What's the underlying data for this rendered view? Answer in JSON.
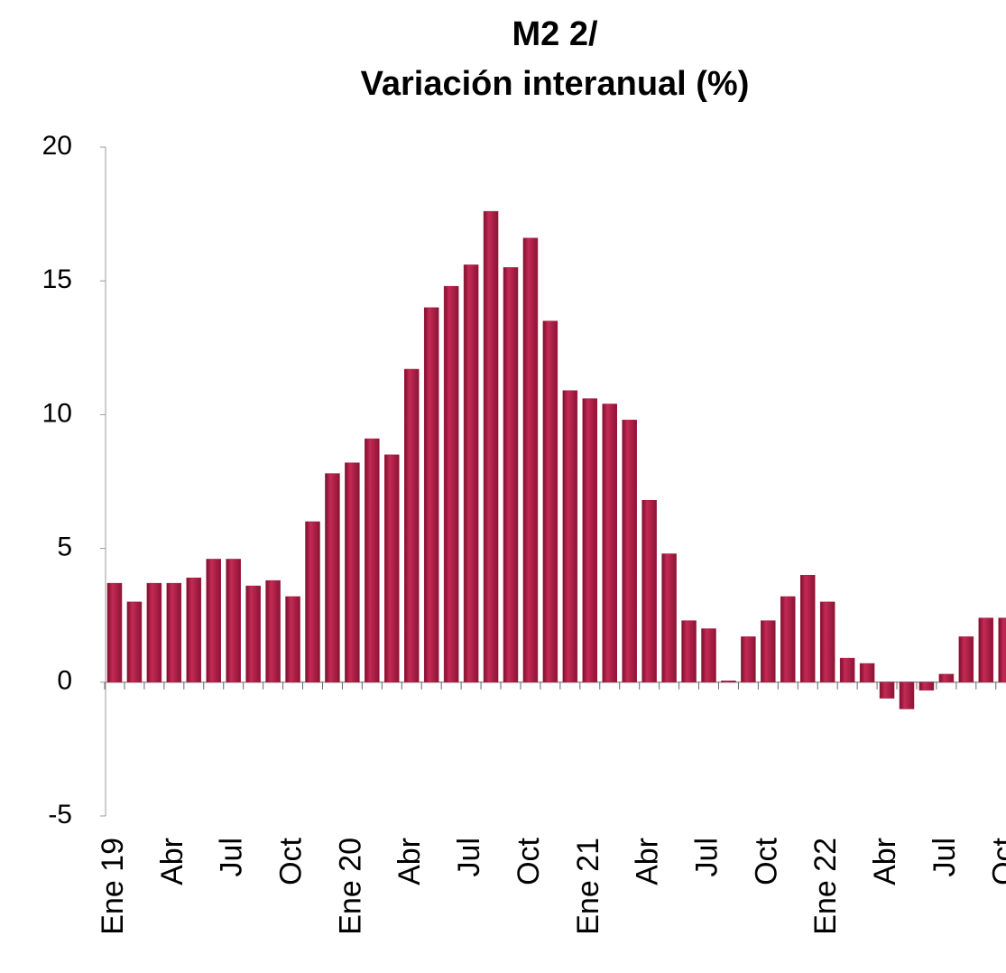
{
  "chart_data": {
    "type": "bar",
    "title": "M2 2/",
    "subtitle": "Variación interanual  (%)",
    "categories": [
      "Ene 19",
      null,
      null,
      "Abr",
      null,
      null,
      "Jul",
      null,
      null,
      "Oct",
      null,
      null,
      "Ene 20",
      null,
      null,
      "Abr",
      null,
      null,
      "Jul",
      null,
      null,
      "Oct",
      null,
      null,
      "Ene 21",
      null,
      null,
      "Abr",
      null,
      null,
      "Jul",
      null,
      null,
      "Oct",
      null,
      null,
      "Ene 22",
      null,
      null,
      "Abr",
      null,
      null,
      "Jul",
      null,
      null,
      "Oct"
    ],
    "values": [
      3.7,
      3.0,
      3.7,
      3.7,
      3.9,
      4.6,
      4.6,
      3.6,
      3.8,
      3.2,
      6.0,
      7.8,
      8.2,
      9.1,
      8.5,
      11.7,
      14.0,
      14.8,
      15.6,
      17.6,
      15.5,
      16.6,
      13.5,
      10.9,
      10.6,
      10.4,
      9.8,
      6.8,
      4.8,
      2.3,
      2.0,
      0.05,
      1.7,
      2.3,
      3.2,
      4.0,
      3.0,
      0.9,
      0.7,
      -0.6,
      -1.0,
      -0.3,
      0.3,
      1.7,
      2.4,
      2.4
    ],
    "color": "#a8193f",
    "ylim": [
      -5,
      20
    ],
    "yticks": [
      -5,
      0,
      5,
      10,
      15,
      20
    ]
  }
}
